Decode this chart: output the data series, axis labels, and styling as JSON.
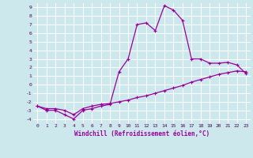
{
  "xlabel": "Windchill (Refroidissement éolien,°C)",
  "bg_color": "#cce8ec",
  "grid_color": "#b0d8dc",
  "line_color": "#990099",
  "xlim": [
    -0.5,
    23.5
  ],
  "ylim": [
    -4.5,
    9.5
  ],
  "xticks": [
    0,
    1,
    2,
    3,
    4,
    5,
    6,
    7,
    8,
    9,
    10,
    11,
    12,
    13,
    14,
    15,
    16,
    17,
    18,
    19,
    20,
    21,
    22,
    23
  ],
  "yticks": [
    -4,
    -3,
    -2,
    -1,
    0,
    1,
    2,
    3,
    4,
    5,
    6,
    7,
    8,
    9
  ],
  "curve1_x": [
    0,
    1,
    2,
    3,
    4,
    5,
    6,
    7,
    8,
    9,
    10,
    11,
    12,
    13,
    14,
    15,
    16,
    17,
    18,
    19,
    20,
    21,
    22,
    23
  ],
  "curve1_y": [
    -2.5,
    -3.0,
    -3.0,
    -3.5,
    -4.0,
    -3.0,
    -2.8,
    -2.5,
    -2.3,
    1.5,
    3.0,
    7.0,
    7.2,
    6.3,
    9.2,
    8.7,
    7.5,
    3.0,
    3.0,
    2.5,
    2.5,
    2.6,
    2.3,
    1.3
  ],
  "curve2_x": [
    0,
    1,
    2,
    3,
    4,
    5,
    6,
    7,
    8,
    9,
    10,
    11,
    12,
    13,
    14,
    15,
    16,
    17,
    18,
    19,
    20,
    21,
    22,
    23
  ],
  "curve2_y": [
    -2.5,
    -2.8,
    -2.8,
    -3.0,
    -3.5,
    -2.8,
    -2.5,
    -2.3,
    -2.2,
    -2.0,
    -1.8,
    -1.5,
    -1.3,
    -1.0,
    -0.7,
    -0.4,
    -0.1,
    0.3,
    0.6,
    0.9,
    1.2,
    1.4,
    1.6,
    1.5
  ]
}
